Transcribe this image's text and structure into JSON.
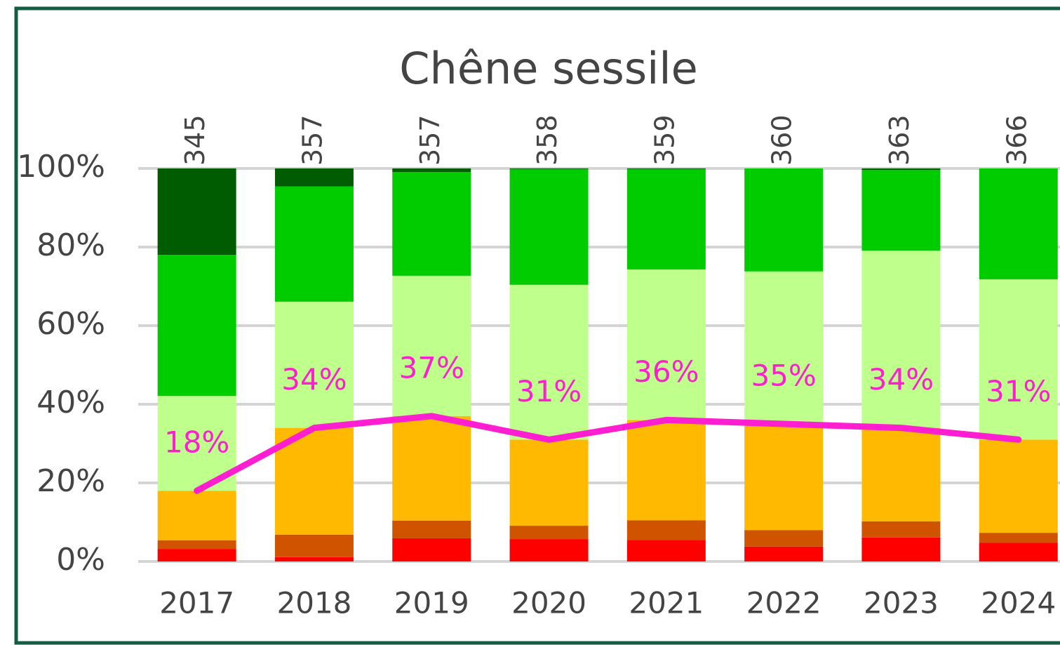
{
  "chart_data": {
    "type": "stacked_bar_line",
    "title": "Chêne sessile",
    "categories": [
      "2017",
      "2018",
      "2019",
      "2020",
      "2021",
      "2022",
      "2023",
      "2024"
    ],
    "counts": [
      345,
      357,
      357,
      358,
      359,
      360,
      363,
      366
    ],
    "series": [
      {
        "color": "#ff0000",
        "values": [
          3.2,
          1.1,
          5.9,
          5.7,
          5.5,
          3.8,
          6.1,
          4.8
        ]
      },
      {
        "color": "#d05400",
        "values": [
          2.2,
          5.7,
          4.5,
          3.4,
          5.0,
          4.2,
          4.1,
          2.5
        ]
      },
      {
        "color": "#ffb900",
        "values": [
          12.6,
          27.2,
          26.6,
          21.9,
          25.5,
          27.0,
          23.8,
          23.7
        ]
      },
      {
        "color": "#bfff8c",
        "values": [
          24.1,
          32.1,
          35.7,
          39.4,
          38.3,
          38.8,
          45.1,
          40.8
        ]
      },
      {
        "color": "#00cc00",
        "values": [
          35.9,
          29.3,
          26.4,
          29.4,
          25.5,
          26.2,
          20.5,
          28.2
        ]
      },
      {
        "color": "#005c00",
        "values": [
          22.0,
          4.6,
          0.9,
          0.2,
          0.2,
          0,
          0.4,
          0
        ]
      }
    ],
    "line": {
      "color": "#ff1ed0",
      "values": [
        18,
        34,
        37,
        31,
        36,
        35,
        34,
        31
      ],
      "value_labels": [
        "18%",
        "34%",
        "37%",
        "31%",
        "36%",
        "35%",
        "34%",
        "31%"
      ]
    },
    "ylim": [
      0,
      100
    ],
    "yticks": [
      {
        "value": 0,
        "label": "0%"
      },
      {
        "value": 20,
        "label": "20%"
      },
      {
        "value": 40,
        "label": "40%"
      },
      {
        "value": 60,
        "label": "60%"
      },
      {
        "value": 80,
        "label": "80%"
      },
      {
        "value": 100,
        "label": "100%"
      }
    ],
    "grid": true
  }
}
